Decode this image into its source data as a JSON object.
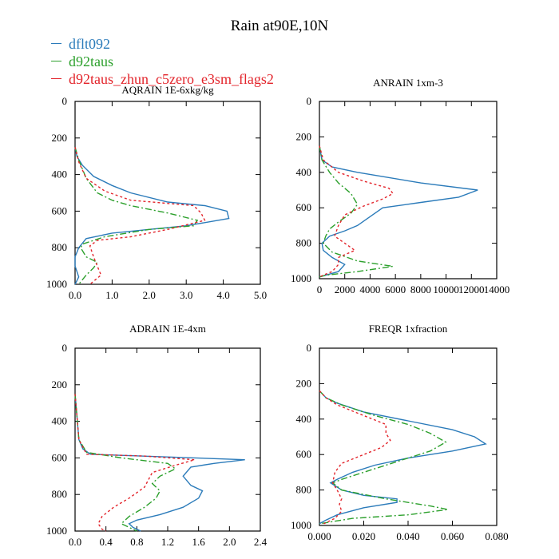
{
  "page": {
    "title": "Rain at90E,10N",
    "legend": [
      {
        "label": "dflt092",
        "color": "#2b7bba",
        "dash": ""
      },
      {
        "label": "d92taus",
        "color": "#2ca02c",
        "dash": "8,3,2,3"
      },
      {
        "label": "d92taus_zhun_c5zero_e3sm_flags2",
        "color": "#e3242b",
        "dash": "3,3"
      }
    ]
  },
  "chart_data": [
    {
      "type": "line",
      "title": "AQRAIN  1E-6xkg/kg",
      "xlim": [
        0,
        5
      ],
      "ylim": [
        1000,
        0
      ],
      "xticks": [
        "0.0",
        "1.0",
        "2.0",
        "3.0",
        "4.0",
        "5.0"
      ],
      "xtick_values": [
        0,
        1,
        2,
        3,
        4,
        5
      ],
      "yticks": [
        "0",
        "200",
        "400",
        "600",
        "800",
        "1000"
      ],
      "ytick_values": [
        0,
        200,
        400,
        600,
        800,
        1000
      ],
      "series": [
        {
          "values": [
            [
              0,
              250
            ],
            [
              0.05,
              300
            ],
            [
              0.2,
              350
            ],
            [
              0.5,
              410
            ],
            [
              1.0,
              460
            ],
            [
              1.5,
              500
            ],
            [
              2.5,
              550
            ],
            [
              3.5,
              570
            ],
            [
              4.1,
              600
            ],
            [
              4.15,
              640
            ],
            [
              3.0,
              680
            ],
            [
              2.0,
              700
            ],
            [
              1.0,
              720
            ],
            [
              0.3,
              750
            ],
            [
              0.1,
              800
            ],
            [
              0,
              850
            ],
            [
              0,
              900
            ],
            [
              0.1,
              960
            ],
            [
              0,
              1000
            ]
          ]
        },
        {
          "values": [
            [
              0,
              250
            ],
            [
              0.1,
              320
            ],
            [
              0.3,
              420
            ],
            [
              0.6,
              500
            ],
            [
              1.0,
              540
            ],
            [
              1.5,
              570
            ],
            [
              2.5,
              610
            ],
            [
              3.3,
              650
            ],
            [
              3.2,
              680
            ],
            [
              2.0,
              700
            ],
            [
              0.8,
              740
            ],
            [
              0.2,
              780
            ],
            [
              0.15,
              800
            ],
            [
              0.3,
              850
            ],
            [
              0.6,
              880
            ],
            [
              0.5,
              910
            ],
            [
              0.3,
              950
            ],
            [
              0.1,
              1000
            ]
          ]
        },
        {
          "values": [
            [
              0,
              250
            ],
            [
              0.1,
              330
            ],
            [
              0.3,
              420
            ],
            [
              0.8,
              490
            ],
            [
              1.5,
              540
            ],
            [
              3.2,
              570
            ],
            [
              3.4,
              610
            ],
            [
              3.5,
              650
            ],
            [
              2.5,
              700
            ],
            [
              1.5,
              740
            ],
            [
              0.6,
              760
            ],
            [
              0.4,
              790
            ],
            [
              0.5,
              850
            ],
            [
              0.6,
              900
            ],
            [
              0.7,
              950
            ],
            [
              0.4,
              1000
            ]
          ]
        }
      ]
    },
    {
      "type": "line",
      "title": "ANRAIN  1xm-3",
      "xlim": [
        0,
        14000
      ],
      "ylim": [
        1000,
        0
      ],
      "xticks": [
        "0",
        "2000",
        "4000",
        "6000",
        "8000",
        "10000",
        "12000",
        "14000"
      ],
      "xtick_values": [
        0,
        2000,
        4000,
        6000,
        8000,
        10000,
        12000,
        14000
      ],
      "yticks": [
        "0",
        "200",
        "400",
        "600",
        "800",
        "1000"
      ],
      "ytick_values": [
        0,
        200,
        400,
        600,
        800,
        1000
      ],
      "series": [
        {
          "values": [
            [
              0,
              250
            ],
            [
              200,
              330
            ],
            [
              1000,
              370
            ],
            [
              3000,
              400
            ],
            [
              8000,
              460
            ],
            [
              12500,
              500
            ],
            [
              11000,
              540
            ],
            [
              8000,
              570
            ],
            [
              5000,
              600
            ],
            [
              4000,
              650
            ],
            [
              3000,
              700
            ],
            [
              2000,
              730
            ],
            [
              800,
              760
            ],
            [
              200,
              800
            ],
            [
              300,
              840
            ],
            [
              1000,
              880
            ],
            [
              2000,
              920
            ],
            [
              1500,
              960
            ],
            [
              500,
              980
            ],
            [
              0,
              990
            ]
          ]
        },
        {
          "values": [
            [
              0,
              250
            ],
            [
              200,
              330
            ],
            [
              800,
              400
            ],
            [
              1500,
              460
            ],
            [
              2500,
              520
            ],
            [
              3000,
              580
            ],
            [
              2500,
              630
            ],
            [
              1500,
              680
            ],
            [
              800,
              720
            ],
            [
              500,
              760
            ],
            [
              300,
              800
            ],
            [
              1000,
              850
            ],
            [
              3000,
              900
            ],
            [
              5800,
              930
            ],
            [
              3000,
              960
            ],
            [
              500,
              980
            ],
            [
              0,
              990
            ]
          ]
        },
        {
          "values": [
            [
              0,
              250
            ],
            [
              300,
              330
            ],
            [
              1500,
              400
            ],
            [
              3500,
              450
            ],
            [
              5500,
              490
            ],
            [
              5800,
              520
            ],
            [
              5000,
              550
            ],
            [
              3500,
              590
            ],
            [
              2000,
              640
            ],
            [
              1500,
              700
            ],
            [
              1200,
              760
            ],
            [
              2000,
              800
            ],
            [
              2800,
              840
            ],
            [
              1500,
              880
            ],
            [
              1500,
              920
            ],
            [
              1000,
              960
            ],
            [
              300,
              980
            ],
            [
              0,
              990
            ]
          ]
        }
      ]
    },
    {
      "type": "line",
      "title": "ADRAIN  1E-4xm",
      "xlim": [
        0,
        2.4
      ],
      "ylim": [
        1000,
        0
      ],
      "xticks": [
        "0.0",
        "0.4",
        "0.8",
        "1.2",
        "1.6",
        "2.0",
        "2.4"
      ],
      "xtick_values": [
        0,
        0.4,
        0.8,
        1.2,
        1.6,
        2.0,
        2.4
      ],
      "yticks": [
        "0",
        "200",
        "400",
        "600",
        "800",
        "1000"
      ],
      "ytick_values": [
        0,
        200,
        400,
        600,
        800,
        1000
      ],
      "series": [
        {
          "values": [
            [
              0,
              250
            ],
            [
              0.05,
              500
            ],
            [
              0.1,
              550
            ],
            [
              0.2,
              580
            ],
            [
              2.2,
              610
            ],
            [
              1.8,
              630
            ],
            [
              1.5,
              650
            ],
            [
              1.4,
              700
            ],
            [
              1.5,
              750
            ],
            [
              1.65,
              780
            ],
            [
              1.6,
              820
            ],
            [
              1.4,
              870
            ],
            [
              1.1,
              910
            ],
            [
              0.8,
              940
            ],
            [
              0.7,
              960
            ],
            [
              0.75,
              980
            ],
            [
              0.85,
              1000
            ]
          ]
        },
        {
          "values": [
            [
              0,
              250
            ],
            [
              0.05,
              500
            ],
            [
              0.15,
              570
            ],
            [
              0.6,
              600
            ],
            [
              1.2,
              630
            ],
            [
              1.3,
              660
            ],
            [
              1.1,
              700
            ],
            [
              1.0,
              740
            ],
            [
              1.1,
              780
            ],
            [
              1.05,
              820
            ],
            [
              0.9,
              870
            ],
            [
              0.7,
              920
            ],
            [
              0.6,
              960
            ],
            [
              0.7,
              980
            ],
            [
              0.8,
              1000
            ]
          ]
        },
        {
          "values": [
            [
              0,
              250
            ],
            [
              0.05,
              500
            ],
            [
              0.15,
              580
            ],
            [
              0.9,
              590
            ],
            [
              1.55,
              610
            ],
            [
              1.3,
              640
            ],
            [
              1.0,
              680
            ],
            [
              0.95,
              720
            ],
            [
              0.9,
              760
            ],
            [
              0.7,
              820
            ],
            [
              0.5,
              870
            ],
            [
              0.35,
              920
            ],
            [
              0.3,
              960
            ],
            [
              0.35,
              990
            ],
            [
              0.4,
              1000
            ]
          ]
        }
      ]
    },
    {
      "type": "line",
      "title": "FREQR  1xfraction",
      "xlim": [
        0,
        0.08
      ],
      "ylim": [
        1000,
        0
      ],
      "xticks": [
        "0.000",
        "0.020",
        "0.040",
        "0.060",
        "0.080"
      ],
      "xtick_values": [
        0,
        0.02,
        0.04,
        0.06,
        0.08
      ],
      "yticks": [
        "0",
        "200",
        "400",
        "600",
        "800",
        "1000"
      ],
      "ytick_values": [
        0,
        200,
        400,
        600,
        800,
        1000
      ],
      "series": [
        {
          "values": [
            [
              0,
              240
            ],
            [
              0.003,
              280
            ],
            [
              0.008,
              310
            ],
            [
              0.02,
              360
            ],
            [
              0.04,
              410
            ],
            [
              0.06,
              460
            ],
            [
              0.07,
              500
            ],
            [
              0.075,
              540
            ],
            [
              0.06,
              580
            ],
            [
              0.04,
              620
            ],
            [
              0.025,
              660
            ],
            [
              0.015,
              700
            ],
            [
              0.008,
              740
            ],
            [
              0.005,
              760
            ],
            [
              0.01,
              800
            ],
            [
              0.02,
              830
            ],
            [
              0.035,
              850
            ],
            [
              0.035,
              870
            ],
            [
              0.02,
              900
            ],
            [
              0.008,
              940
            ],
            [
              0.003,
              970
            ],
            [
              0,
              990
            ]
          ]
        },
        {
          "values": [
            [
              0,
              240
            ],
            [
              0.003,
              280
            ],
            [
              0.01,
              320
            ],
            [
              0.025,
              380
            ],
            [
              0.04,
              430
            ],
            [
              0.05,
              480
            ],
            [
              0.057,
              530
            ],
            [
              0.05,
              580
            ],
            [
              0.04,
              620
            ],
            [
              0.03,
              660
            ],
            [
              0.02,
              700
            ],
            [
              0.01,
              740
            ],
            [
              0.006,
              760
            ],
            [
              0.01,
              800
            ],
            [
              0.03,
              850
            ],
            [
              0.05,
              890
            ],
            [
              0.058,
              910
            ],
            [
              0.04,
              940
            ],
            [
              0.015,
              960
            ],
            [
              0.005,
              980
            ],
            [
              0,
              990
            ]
          ]
        },
        {
          "values": [
            [
              0,
              240
            ],
            [
              0.003,
              280
            ],
            [
              0.008,
              320
            ],
            [
              0.02,
              380
            ],
            [
              0.03,
              430
            ],
            [
              0.03,
              480
            ],
            [
              0.032,
              520
            ],
            [
              0.028,
              560
            ],
            [
              0.02,
              600
            ],
            [
              0.01,
              650
            ],
            [
              0.007,
              700
            ],
            [
              0.006,
              760
            ],
            [
              0.008,
              800
            ],
            [
              0.01,
              850
            ],
            [
              0.009,
              880
            ],
            [
              0.01,
              920
            ],
            [
              0.007,
              960
            ],
            [
              0.002,
              990
            ]
          ]
        }
      ]
    }
  ]
}
